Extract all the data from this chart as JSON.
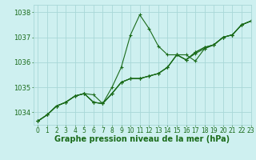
{
  "title": "Graphe pression niveau de la mer (hPa)",
  "background_color": "#cef0f0",
  "grid_color": "#a8d8d8",
  "line_color": "#1a6b1a",
  "marker_color": "#1a6b1a",
  "xlim": [
    -0.5,
    23
  ],
  "ylim": [
    1033.5,
    1038.3
  ],
  "yticks": [
    1034,
    1035,
    1036,
    1037,
    1038
  ],
  "xticks": [
    0,
    1,
    2,
    3,
    4,
    5,
    6,
    7,
    8,
    9,
    10,
    11,
    12,
    13,
    14,
    15,
    16,
    17,
    18,
    19,
    20,
    21,
    22,
    23
  ],
  "series": [
    [
      1033.65,
      1033.9,
      1034.25,
      1034.4,
      1034.65,
      1034.75,
      1034.7,
      1034.35,
      1035.0,
      1035.8,
      1037.1,
      1037.9,
      1037.35,
      1036.65,
      1036.3,
      1036.3,
      1036.3,
      1036.05,
      1036.55,
      1036.7,
      1037.0,
      1037.1,
      1037.5,
      1037.65
    ],
    [
      1033.65,
      1033.9,
      1034.25,
      1034.4,
      1034.65,
      1034.75,
      1034.4,
      1034.35,
      1034.75,
      1035.2,
      1035.35,
      1035.35,
      1035.45,
      1035.55,
      1035.8,
      1036.3,
      1036.1,
      1036.35,
      1036.55,
      1036.7,
      1037.0,
      1037.1,
      1037.5,
      1037.65
    ],
    [
      1033.65,
      1033.9,
      1034.25,
      1034.4,
      1034.65,
      1034.75,
      1034.4,
      1034.35,
      1034.75,
      1035.2,
      1035.35,
      1035.35,
      1035.45,
      1035.55,
      1035.8,
      1036.3,
      1036.1,
      1036.4,
      1036.6,
      1036.7,
      1037.0,
      1037.1,
      1037.5,
      1037.65
    ],
    [
      1033.65,
      1033.9,
      1034.25,
      1034.4,
      1034.65,
      1034.75,
      1034.4,
      1034.35,
      1034.75,
      1035.2,
      1035.35,
      1035.35,
      1035.45,
      1035.55,
      1035.8,
      1036.3,
      1036.1,
      1036.4,
      1036.6,
      1036.7,
      1037.0,
      1037.1,
      1037.5,
      1037.65
    ]
  ],
  "xlabel_fontsize": 5.5,
  "ylabel_fontsize": 6,
  "title_fontsize": 7,
  "figsize": [
    3.2,
    2.0
  ],
  "dpi": 100
}
